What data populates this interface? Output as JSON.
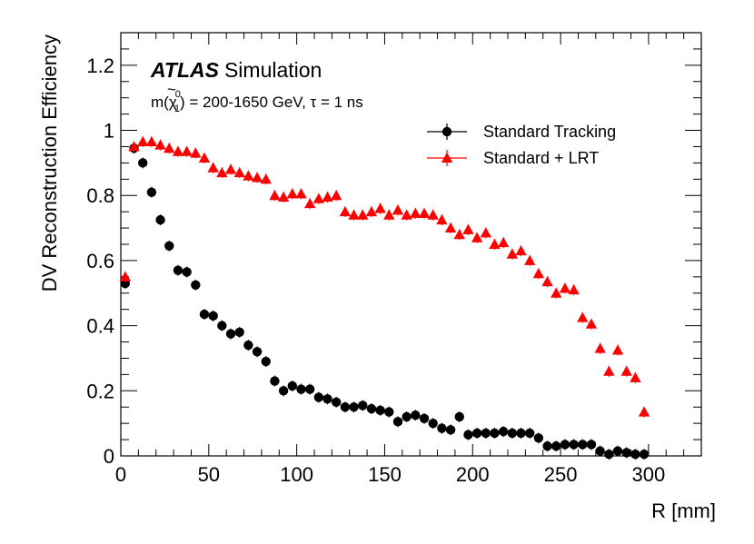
{
  "chart_data": {
    "type": "scatter",
    "title": "",
    "xlabel": "R [mm]",
    "ylabel": "DV Reconstruction Efficiency",
    "xlim": [
      0,
      330
    ],
    "ylim": [
      0,
      1.3
    ],
    "x_ticks": [
      "0",
      "50",
      "100",
      "150",
      "200",
      "250",
      "300"
    ],
    "x_tick_values": [
      0,
      50,
      100,
      150,
      200,
      250,
      300
    ],
    "y_ticks": [
      "0",
      "0.2",
      "0.4",
      "0.6",
      "0.8",
      "1",
      "1.2"
    ],
    "y_tick_values": [
      0,
      0.2,
      0.4,
      0.6,
      0.8,
      1.0,
      1.2
    ],
    "annotation": {
      "brand": "ATLAS",
      "label": "Simulation",
      "line2_prefix": "m(",
      "line2_particle": "χ",
      "line2_tilde": "~",
      "line2_sup": "0",
      "line2_sub": "1",
      "line2_suffix": ") = 200-1650 GeV, τ = 1 ns"
    },
    "legend_position": "top-right",
    "series": [
      {
        "name": "Standard Tracking",
        "color": "#000000",
        "marker": "circle",
        "x": [
          2.5,
          7.5,
          12.5,
          17.5,
          22.5,
          27.5,
          32.5,
          37.5,
          42.5,
          47.5,
          52.5,
          57.5,
          62.5,
          67.5,
          72.5,
          77.5,
          82.5,
          87.5,
          92.5,
          97.5,
          102.5,
          107.5,
          112.5,
          117.5,
          122.5,
          127.5,
          132.5,
          137.5,
          142.5,
          147.5,
          152.5,
          157.5,
          162.5,
          167.5,
          172.5,
          177.5,
          182.5,
          187.5,
          192.5,
          197.5,
          202.5,
          207.5,
          212.5,
          217.5,
          222.5,
          227.5,
          232.5,
          237.5,
          242.5,
          247.5,
          252.5,
          257.5,
          262.5,
          267.5,
          272.5,
          277.5,
          282.5,
          287.5,
          292.5,
          297.5
        ],
        "y": [
          0.53,
          0.945,
          0.9,
          0.81,
          0.725,
          0.645,
          0.57,
          0.565,
          0.525,
          0.435,
          0.43,
          0.4,
          0.375,
          0.38,
          0.34,
          0.32,
          0.29,
          0.23,
          0.2,
          0.215,
          0.205,
          0.205,
          0.18,
          0.175,
          0.165,
          0.15,
          0.15,
          0.155,
          0.145,
          0.14,
          0.135,
          0.105,
          0.12,
          0.125,
          0.115,
          0.1,
          0.085,
          0.08,
          0.12,
          0.065,
          0.07,
          0.07,
          0.07,
          0.075,
          0.07,
          0.07,
          0.07,
          0.055,
          0.03,
          0.03,
          0.035,
          0.035,
          0.035,
          0.035,
          0.015,
          0.005,
          0.015,
          0.01,
          0.005,
          0.005
        ]
      },
      {
        "name": "Standard + LRT",
        "color": "#ff0000",
        "marker": "triangle-up",
        "x": [
          2.5,
          7.5,
          12.5,
          17.5,
          22.5,
          27.5,
          32.5,
          37.5,
          42.5,
          47.5,
          52.5,
          57.5,
          62.5,
          67.5,
          72.5,
          77.5,
          82.5,
          87.5,
          92.5,
          97.5,
          102.5,
          107.5,
          112.5,
          117.5,
          122.5,
          127.5,
          132.5,
          137.5,
          142.5,
          147.5,
          152.5,
          157.5,
          162.5,
          167.5,
          172.5,
          177.5,
          182.5,
          187.5,
          192.5,
          197.5,
          202.5,
          207.5,
          212.5,
          217.5,
          222.5,
          227.5,
          232.5,
          237.5,
          242.5,
          247.5,
          252.5,
          257.5,
          262.5,
          267.5,
          272.5,
          277.5,
          282.5,
          287.5,
          292.5,
          297.5
        ],
        "y": [
          0.55,
          0.95,
          0.965,
          0.965,
          0.955,
          0.945,
          0.935,
          0.935,
          0.93,
          0.915,
          0.885,
          0.87,
          0.88,
          0.87,
          0.86,
          0.855,
          0.85,
          0.8,
          0.795,
          0.805,
          0.805,
          0.775,
          0.79,
          0.795,
          0.8,
          0.75,
          0.74,
          0.74,
          0.75,
          0.76,
          0.74,
          0.755,
          0.74,
          0.745,
          0.745,
          0.74,
          0.725,
          0.7,
          0.68,
          0.695,
          0.67,
          0.685,
          0.65,
          0.655,
          0.62,
          0.63,
          0.6,
          0.56,
          0.535,
          0.5,
          0.515,
          0.51,
          0.425,
          0.405,
          0.33,
          0.26,
          0.325,
          0.26,
          0.24,
          0.135
        ]
      }
    ]
  }
}
